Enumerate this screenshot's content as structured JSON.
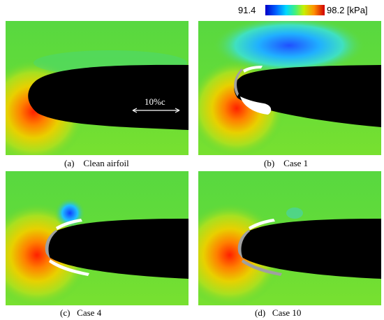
{
  "colorbar": {
    "min_label": "91.4",
    "max_label": "98.2 [kPa]",
    "min_kpa": 91.4,
    "max_kpa": 98.2
  },
  "scale_bar": {
    "label": "10%c"
  },
  "panels": [
    {
      "id": "a",
      "caption": "(a)    Clean airfoil"
    },
    {
      "id": "b",
      "caption": "(b)    Case 1"
    },
    {
      "id": "c",
      "caption": "(c)   Case 4"
    },
    {
      "id": "d",
      "caption": "(d)   Case 10"
    }
  ],
  "colors": {
    "background_field": "#60d838",
    "stagnation_high": "#ff1a00",
    "suction_low": "#1a40ff",
    "airfoil": "#000000",
    "ice": "#a0a0a0"
  }
}
